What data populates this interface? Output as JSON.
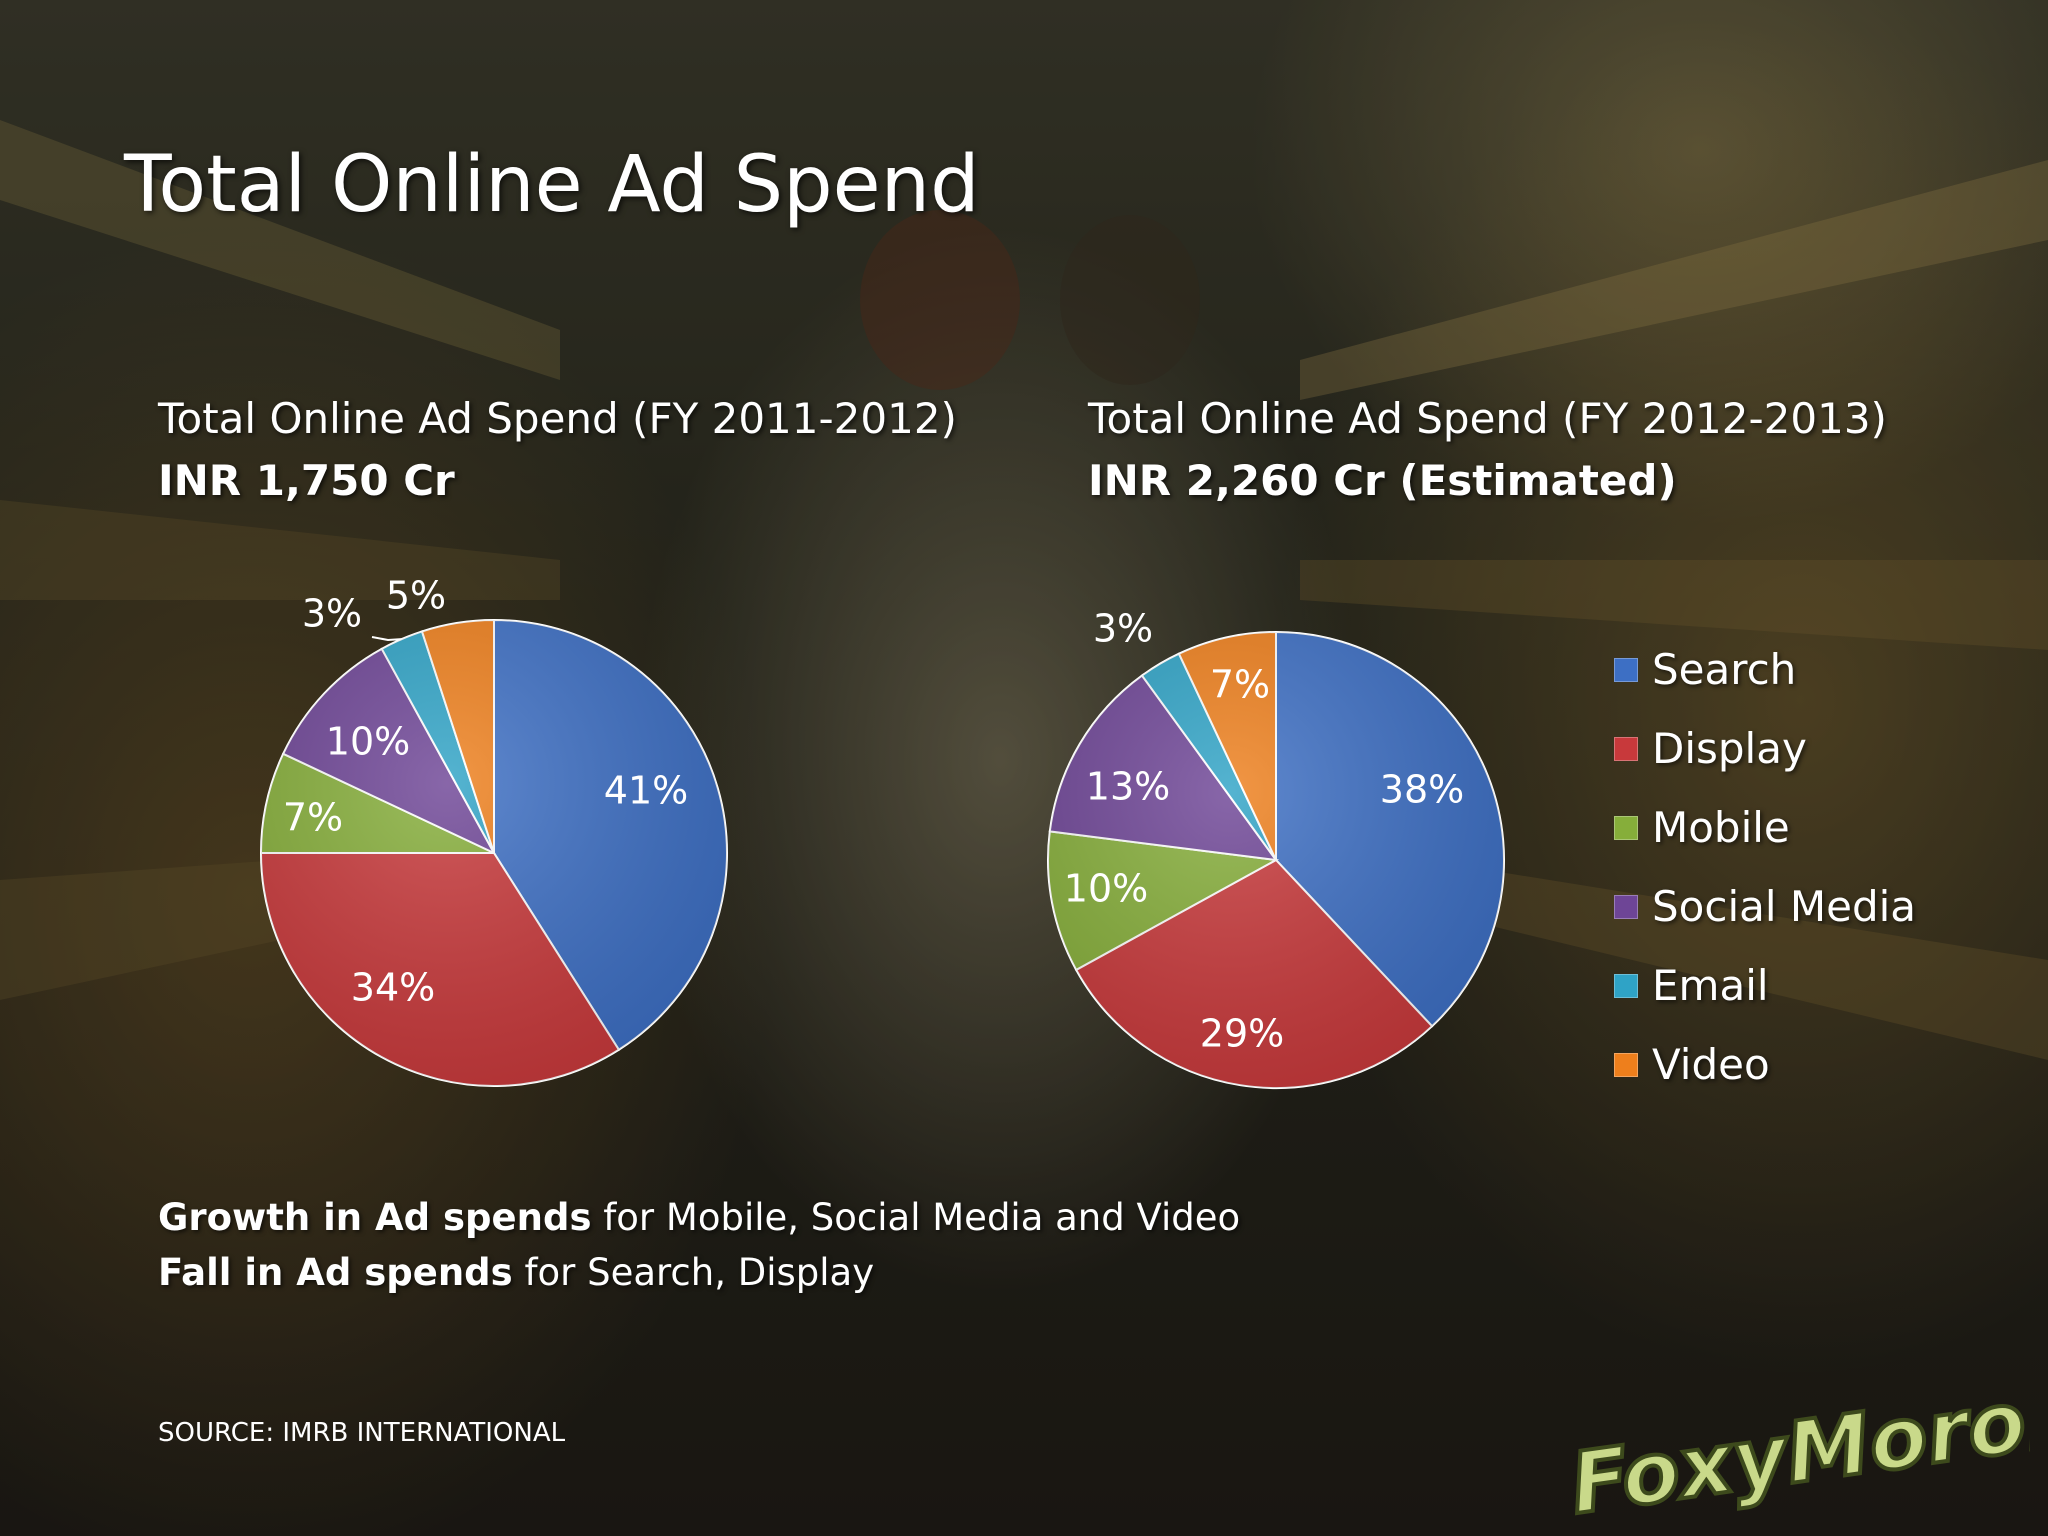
{
  "title": "Total Online Ad Spend",
  "colors": {
    "Search": "#3d6fc4",
    "Display": "#c8393b",
    "Mobile": "#86ae3a",
    "Social Media": "#6e4596",
    "Email": "#2fa3c6",
    "Video": "#ee7f1c"
  },
  "chart_data": [
    {
      "type": "pie",
      "title": "Total Online Ad Spend (FY 2011-2012)",
      "subtitle": "INR 1,750 Cr",
      "categories": [
        "Search",
        "Display",
        "Mobile",
        "Social Media",
        "Email",
        "Video"
      ],
      "values": [
        41,
        34,
        7,
        10,
        3,
        5
      ],
      "labels": [
        "41%",
        "34%",
        "7%",
        "10%",
        "3%",
        "5%"
      ]
    },
    {
      "type": "pie",
      "title": "Total Online Ad Spend (FY 2012-2013)",
      "subtitle": "INR 2,260 Cr (Estimated)",
      "categories": [
        "Search",
        "Display",
        "Mobile",
        "Social Media",
        "Email",
        "Video"
      ],
      "values": [
        38,
        29,
        10,
        13,
        3,
        7
      ],
      "labels": [
        "38%",
        "29%",
        "10%",
        "13%",
        "3%",
        "7%"
      ],
      "legend": "right"
    }
  ],
  "legend": [
    "Search",
    "Display",
    "Mobile",
    "Social Media",
    "Email",
    "Video"
  ],
  "notes": {
    "line1_bold": "Growth in Ad spends",
    "line1_rest": " for Mobile, Social Media and Video",
    "line2_bold": "Fall in Ad spends",
    "line2_rest": " for Search, Display"
  },
  "source": "SOURCE: IMRB INTERNATIONAL",
  "logo_text": "FoxyMoron"
}
